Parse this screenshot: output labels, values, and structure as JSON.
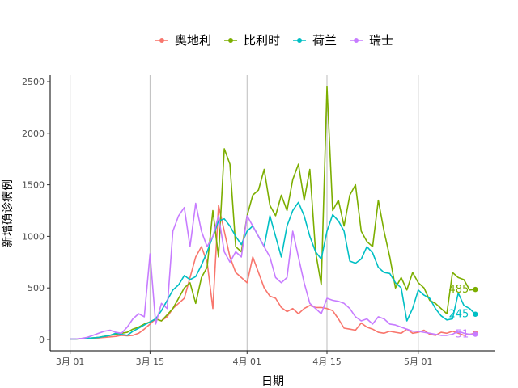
{
  "chart_data": {
    "type": "line",
    "xlabel": "日期",
    "ylabel": "新增确诊病例",
    "ylim": [
      0,
      2600
    ],
    "y_ticks": [
      0,
      500,
      1000,
      1500,
      2000,
      2500
    ],
    "x_ticks": [
      {
        "day": 0,
        "label": "3月 01"
      },
      {
        "day": 14,
        "label": "3月 15"
      },
      {
        "day": 31,
        "label": "4月 01"
      },
      {
        "day": 45,
        "label": "4月 15"
      },
      {
        "day": 61,
        "label": "5月 01"
      }
    ],
    "x_unit": "days since 3月 01",
    "xlim": [
      -3.5,
      74.5
    ],
    "vertical_gridlines": true,
    "legend_position": "top",
    "series": [
      {
        "name": "奥地利",
        "color": "#F8766D",
        "end_label": "",
        "values": [
          5,
          5,
          8,
          10,
          12,
          15,
          20,
          25,
          30,
          40,
          35,
          40,
          60,
          100,
          150,
          200,
          180,
          220,
          300,
          350,
          400,
          600,
          800,
          900,
          750,
          300,
          1300,
          1050,
          800,
          650,
          600,
          550,
          800,
          650,
          500,
          420,
          400,
          310,
          270,
          300,
          250,
          300,
          330,
          310,
          310,
          300,
          280,
          200,
          110,
          100,
          90,
          160,
          120,
          100,
          70,
          60,
          80,
          70,
          60,
          100,
          60,
          70,
          90,
          50,
          40,
          70,
          60,
          80,
          60,
          40,
          50,
          60
        ]
      },
      {
        "name": "比利时",
        "color": "#7CAE00",
        "end_label": "485",
        "values": [
          5,
          5,
          8,
          10,
          15,
          20,
          30,
          40,
          50,
          60,
          70,
          100,
          120,
          150,
          170,
          200,
          180,
          240,
          300,
          400,
          500,
          550,
          350,
          600,
          700,
          1250,
          800,
          1850,
          1700,
          900,
          850,
          1200,
          1400,
          1450,
          1650,
          1300,
          1200,
          1400,
          1250,
          1550,
          1700,
          1350,
          1650,
          850,
          530,
          2450,
          1250,
          1350,
          1100,
          1400,
          1500,
          1050,
          950,
          900,
          1350,
          1050,
          800,
          500,
          600,
          480,
          650,
          550,
          500,
          380,
          350,
          300,
          250,
          650,
          600,
          580,
          480,
          485
        ]
      },
      {
        "name": "荷兰",
        "color": "#00BFC4",
        "end_label": "245",
        "values": [
          5,
          5,
          8,
          10,
          15,
          20,
          30,
          40,
          60,
          50,
          40,
          80,
          110,
          140,
          170,
          200,
          280,
          380,
          480,
          530,
          620,
          580,
          610,
          720,
          850,
          1000,
          1150,
          1170,
          1100,
          1000,
          920,
          1050,
          1100,
          1000,
          900,
          1200,
          1000,
          800,
          1100,
          1250,
          1330,
          1200,
          1000,
          850,
          780,
          1050,
          1210,
          1150,
          1050,
          760,
          740,
          780,
          900,
          840,
          700,
          650,
          640,
          550,
          500,
          180,
          300,
          480,
          430,
          400,
          300,
          230,
          190,
          200,
          450,
          330,
          300,
          245
        ]
      },
      {
        "name": "瑞士",
        "color": "#C77CFF",
        "end_label": "51",
        "values": [
          5,
          5,
          10,
          20,
          40,
          60,
          80,
          90,
          70,
          60,
          120,
          200,
          250,
          220,
          830,
          150,
          350,
          300,
          1050,
          1200,
          1280,
          900,
          1320,
          1050,
          900,
          1000,
          1200,
          850,
          750,
          850,
          800,
          1200,
          1100,
          1000,
          900,
          800,
          600,
          550,
          600,
          1050,
          800,
          550,
          350,
          300,
          250,
          400,
          380,
          370,
          350,
          300,
          220,
          180,
          200,
          150,
          220,
          200,
          150,
          140,
          120,
          100,
          80,
          80,
          70,
          60,
          50,
          40,
          40,
          50,
          80,
          60,
          50,
          51
        ]
      }
    ]
  }
}
